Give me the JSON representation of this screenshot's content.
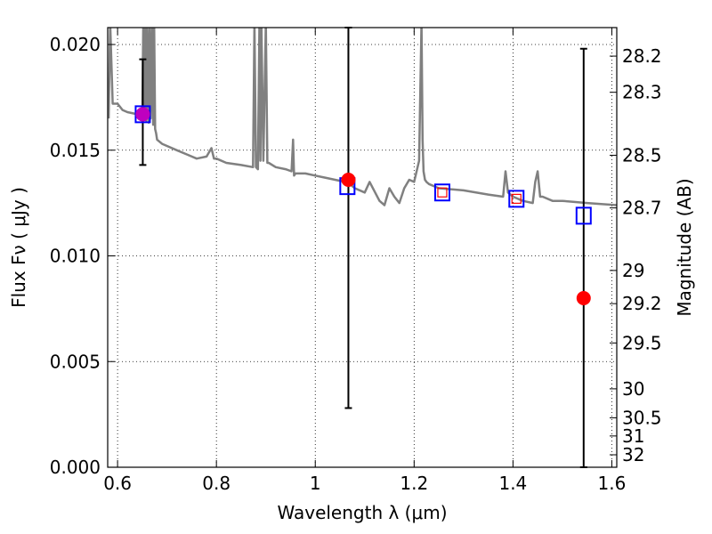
{
  "chart_data": {
    "type": "scatter",
    "title": "",
    "xlabel": "Wavelength  λ (μm)",
    "ylabel": "Flux  Fν  ( μJy )",
    "y2label": "Magnitude (AB)",
    "xlim": [
      0.58,
      1.61
    ],
    "ylim": [
      0.0,
      0.0208
    ],
    "grid": true,
    "grid_style": "dotted",
    "x_ticks": [
      0.6,
      0.8,
      1.0,
      1.2,
      1.4,
      1.6
    ],
    "x_tick_labels": [
      "0.6",
      "0.8",
      "1",
      "1.2",
      "1.4",
      "1.6"
    ],
    "y_ticks": [
      0.0,
      0.005,
      0.01,
      0.015,
      0.02
    ],
    "y_tick_labels": [
      "0.000",
      "0.005",
      "0.010",
      "0.015",
      "0.020"
    ],
    "y2_ticks": [
      {
        "label": "28.2",
        "flux": 0.01945
      },
      {
        "label": "28.3",
        "flux": 0.01774
      },
      {
        "label": "28.5",
        "flux": 0.01476
      },
      {
        "label": "28.7",
        "flux": 0.01227
      },
      {
        "label": "29",
        "flux": 0.00931
      },
      {
        "label": "29.2",
        "flux": 0.00774
      },
      {
        "label": "29.5",
        "flux": 0.00588
      },
      {
        "label": "30",
        "flux": 0.00371
      },
      {
        "label": "30.5",
        "flux": 0.00234
      },
      {
        "label": "31",
        "flux": 0.00148
      },
      {
        "label": "32",
        "flux": 0.00059
      }
    ],
    "model_spectrum": {
      "color": "#808080",
      "x": [
        0.582,
        0.585,
        0.59,
        0.6,
        0.61,
        0.62,
        0.64,
        0.65,
        0.652,
        0.654,
        0.656,
        0.658,
        0.66,
        0.663,
        0.665,
        0.667,
        0.67,
        0.672,
        0.674,
        0.676,
        0.678,
        0.68,
        0.69,
        0.7,
        0.72,
        0.74,
        0.76,
        0.78,
        0.79,
        0.795,
        0.8,
        0.82,
        0.85,
        0.874,
        0.877,
        0.88,
        0.884,
        0.887,
        0.889,
        0.891,
        0.895,
        0.9,
        0.903,
        0.906,
        0.92,
        0.94,
        0.952,
        0.955,
        0.957,
        0.96,
        0.98,
        1.0,
        1.02,
        1.04,
        1.06,
        1.07,
        1.08,
        1.1,
        1.11,
        1.13,
        1.14,
        1.15,
        1.16,
        1.17,
        1.18,
        1.19,
        1.2,
        1.21,
        1.215,
        1.217,
        1.219,
        1.222,
        1.225,
        1.23,
        1.25,
        1.3,
        1.35,
        1.38,
        1.385,
        1.39,
        1.4,
        1.42,
        1.44,
        1.445,
        1.45,
        1.455,
        1.46,
        1.48,
        1.5,
        1.55,
        1.61
      ],
      "y": [
        0.0165,
        0.021,
        0.0172,
        0.0172,
        0.0169,
        0.0168,
        0.0167,
        0.0166,
        0.021,
        0.0165,
        0.021,
        0.0164,
        0.021,
        0.0163,
        0.021,
        0.0165,
        0.021,
        0.0162,
        0.021,
        0.016,
        0.0158,
        0.0155,
        0.0153,
        0.0152,
        0.015,
        0.0148,
        0.0146,
        0.0147,
        0.0151,
        0.0146,
        0.0146,
        0.0144,
        0.0143,
        0.0142,
        0.021,
        0.0142,
        0.0141,
        0.021,
        0.0145,
        0.021,
        0.0145,
        0.021,
        0.0144,
        0.0144,
        0.0142,
        0.0141,
        0.014,
        0.0155,
        0.0138,
        0.0139,
        0.0139,
        0.0138,
        0.0137,
        0.0136,
        0.0135,
        0.0134,
        0.0132,
        0.013,
        0.0135,
        0.0126,
        0.0124,
        0.0132,
        0.0128,
        0.0125,
        0.0132,
        0.0136,
        0.0135,
        0.0145,
        0.021,
        0.0155,
        0.014,
        0.0136,
        0.0135,
        0.0134,
        0.0132,
        0.0131,
        0.0129,
        0.0128,
        0.014,
        0.013,
        0.0128,
        0.0126,
        0.0125,
        0.0135,
        0.014,
        0.0128,
        0.0128,
        0.0126,
        0.0126,
        0.0125,
        0.0124
      ]
    },
    "model_boxes": {
      "name": "",
      "color": "#0000ff",
      "x": [
        0.651,
        1.065,
        1.257,
        1.407,
        1.543
      ],
      "y": [
        0.0167,
        0.0133,
        0.013,
        0.0127,
        0.0119
      ]
    },
    "observed_points": {
      "color": "#ff0000",
      "x": [
        0.651,
        1.067,
        1.543
      ],
      "y": [
        0.0167,
        0.0136,
        0.008
      ],
      "yerr_low": [
        0.0143,
        0.0028,
        0.0
      ],
      "yerr_high": [
        0.0193,
        0.0208,
        0.0198
      ]
    },
    "upper_limits": {
      "color": "#ff0000",
      "x": [
        1.257,
        1.407
      ],
      "y": [
        0.013,
        0.0127
      ]
    },
    "purple_point": {
      "x": 0.651,
      "y": 0.0167,
      "color": "#bf00bf"
    }
  }
}
